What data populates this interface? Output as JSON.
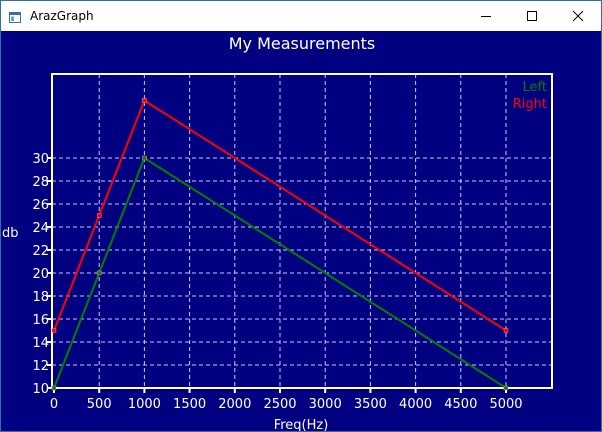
{
  "window": {
    "title": "ArazGraph",
    "controls": {
      "minimize": "minimize-icon",
      "maximize": "maximize-icon",
      "close": "close-icon"
    }
  },
  "colors": {
    "background": "#000080",
    "axis": "#ffffff",
    "grid": "#c8c8ff",
    "text": "#ffffff",
    "left_series": "#008000",
    "right_series": "#ff0000"
  },
  "chart_data": {
    "type": "line",
    "title": "My Measurements",
    "xlabel": "Freq(Hz)",
    "ylabel": "db",
    "xlim": [
      0,
      5500
    ],
    "ylim": [
      10,
      36
    ],
    "grid": true,
    "legend_position": "top-right",
    "x_ticks": [
      "0",
      "500",
      "1000",
      "1500",
      "2000",
      "2500",
      "3000",
      "3500",
      "4000",
      "4500",
      "5000"
    ],
    "y_ticks": [
      "10",
      "12",
      "14",
      "16",
      "18",
      "20",
      "22",
      "24",
      "26",
      "28",
      "30"
    ],
    "series": [
      {
        "name": "Left",
        "color": "#008000",
        "points": [
          [
            0,
            10
          ],
          [
            500,
            20
          ],
          [
            1000,
            30
          ],
          [
            5000,
            10
          ]
        ]
      },
      {
        "name": "Right",
        "color": "#ff0000",
        "points": [
          [
            0,
            15
          ],
          [
            500,
            25
          ],
          [
            1000,
            35
          ],
          [
            5000,
            15
          ]
        ]
      }
    ]
  }
}
